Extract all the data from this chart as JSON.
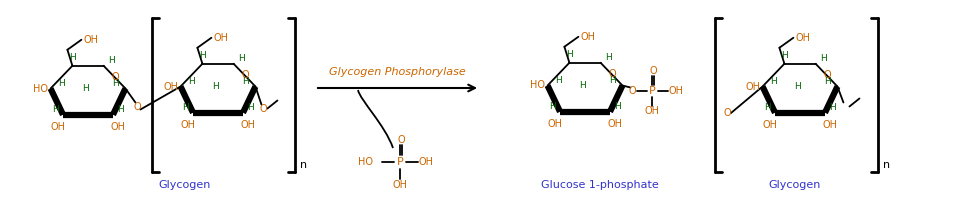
{
  "bg_color": "#ffffff",
  "black": "#000000",
  "orange": "#cc6600",
  "blue": "#3333cc",
  "green": "#006600",
  "enzyme_label": "Glycogen Phosphorylase",
  "label_glycogen": "Glycogen",
  "label_glucose1p": "Glucose 1-phosphate",
  "figsize": [
    9.6,
    2.08
  ],
  "dpi": 100,
  "lw_thin": 1.3,
  "lw_bold": 4.5
}
